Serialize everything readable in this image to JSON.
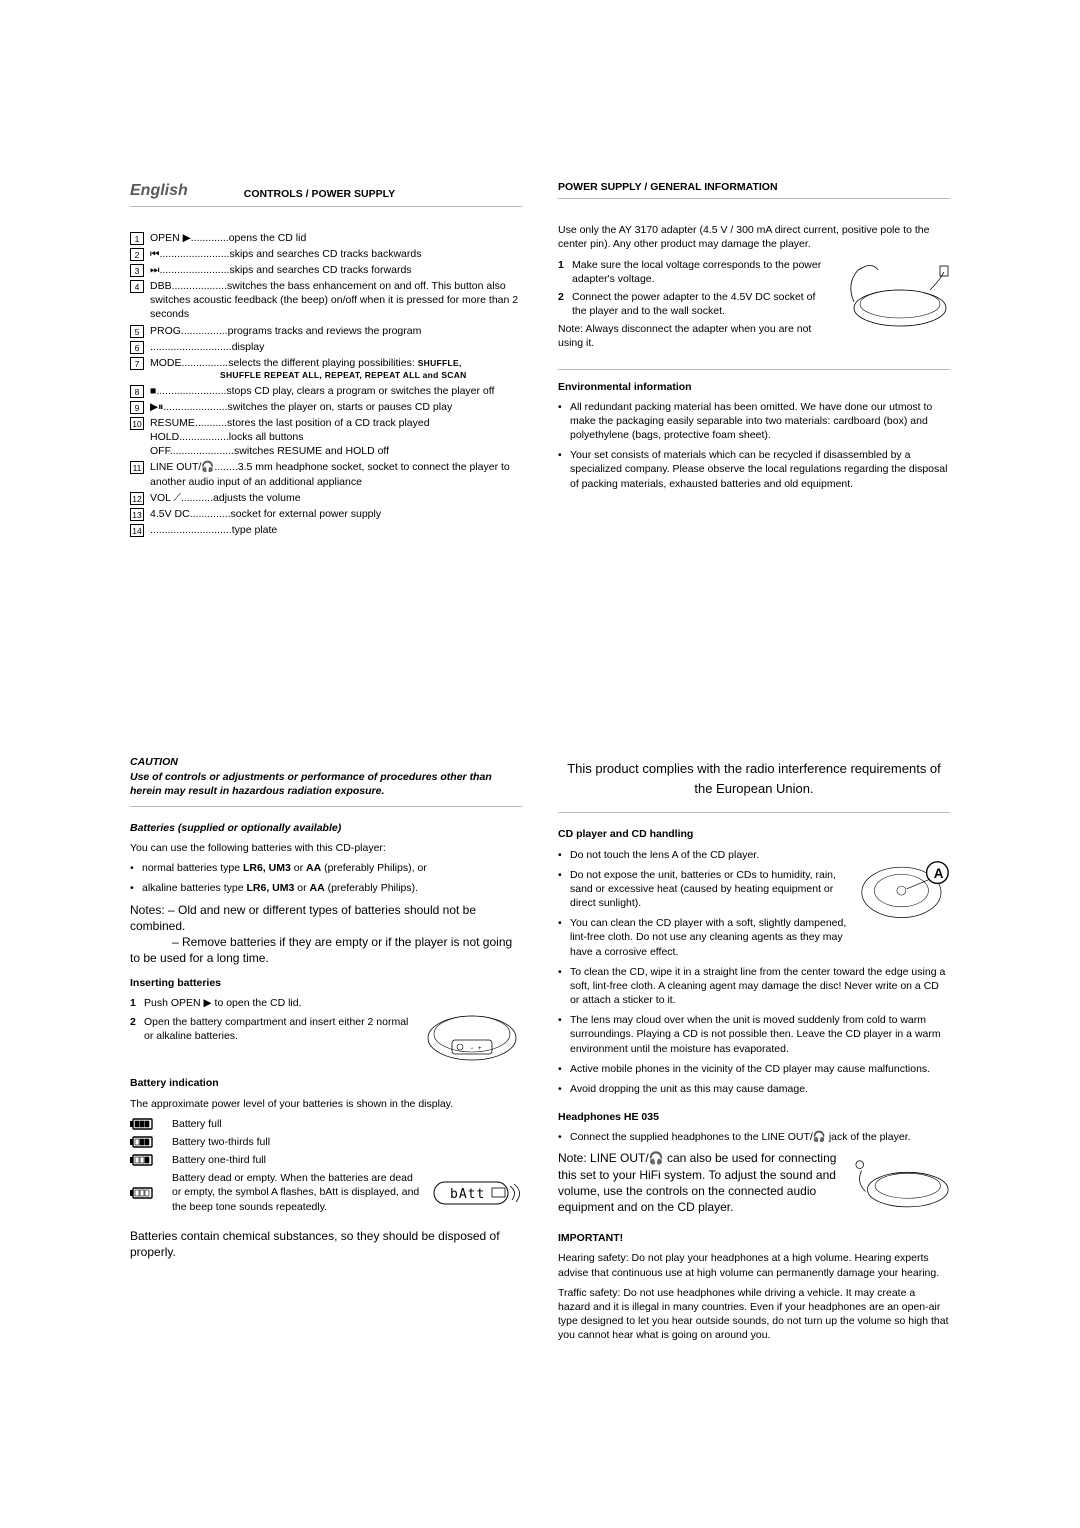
{
  "header": {
    "language": "English",
    "left_title": "CONTROLS / POWER SUPPLY",
    "right_title": "POWER SUPPLY / GENERAL INFORMATION"
  },
  "controls": [
    {
      "n": "1",
      "label": "OPEN ▶",
      "dots": ".............",
      "desc": "opens the CD lid"
    },
    {
      "n": "2",
      "label": "⏮",
      "dots": "........................",
      "desc": "skips and searches CD tracks backwards"
    },
    {
      "n": "3",
      "label": "⏭",
      "dots": "........................",
      "desc": "skips and searches CD tracks forwards"
    },
    {
      "n": "4",
      "label": "DBB",
      "dots": "...................",
      "desc": "switches the bass enhancement on and off. This button also switches acoustic feedback (the beep) on/off when it is pressed for more than 2 seconds"
    },
    {
      "n": "5",
      "label": "PROG",
      "dots": "................",
      "desc": "programs tracks and reviews the program"
    },
    {
      "n": "6",
      "label": "",
      "dots": "............................",
      "desc": "display"
    },
    {
      "n": "7",
      "label": "MODE",
      "dots": "................",
      "desc": "selects the different playing possibilities: ",
      "desc_tail_small": "SHUFFLE,",
      "sub": "SHUFFLE REPEAT ALL, REPEAT, REPEAT ALL and SCAN"
    },
    {
      "n": "8",
      "label": "■",
      "dots": "........................",
      "desc": "stops CD play, clears a program or switches the player off"
    },
    {
      "n": "9",
      "label": "▶⏸",
      "dots": "......................",
      "desc": "switches the player on, starts or pauses CD play"
    },
    {
      "n": "10",
      "label": "RESUME",
      "dots": "...........",
      "desc": "stores the last position of a CD track played",
      "extra_lines": [
        {
          "label": "HOLD",
          "dots": ".................",
          "desc": "locks all buttons"
        },
        {
          "label": "OFF",
          "dots": "......................",
          "desc": "switches RESUME and HOLD off"
        }
      ]
    },
    {
      "n": "11",
      "label": "LINE OUT/🎧",
      "dots": "........",
      "desc": "3.5 mm headphone socket, socket to connect the player to another audio input of an additional appliance"
    },
    {
      "n": "12",
      "label": "VOL ⟋",
      "dots": "...........",
      "desc": "adjusts the volume"
    },
    {
      "n": "13",
      "label": "4.5V DC",
      "dots": "..............",
      "desc": "socket for external power supply"
    },
    {
      "n": "14",
      "label": "",
      "dots": "............................",
      "desc": "type plate"
    }
  ],
  "power": {
    "intro": "Use only the AY 3170 adapter (4.5 V / 300 mA direct current, positive pole to the center pin). Any other product may damage the player.",
    "steps": [
      "Make sure the local voltage corresponds to the power adapter's voltage.",
      "Connect the power adapter to the 4.5V DC socket of the player and to the wall socket."
    ],
    "note": "Note: Always disconnect the adapter when you are not using it."
  },
  "env": {
    "head": "Environmental information",
    "bullets": [
      "All redundant packing material has been omitted. We have done our utmost to make the packaging easily separable into two materials: cardboard (box) and polyethylene (bags, protective foam sheet).",
      "Your set consists of materials which can be recycled if disassembled by a specialized company. Please observe the local regulations regarding the disposal of packing materials, exhausted batteries and old equipment."
    ]
  },
  "caution": {
    "head": "CAUTION",
    "body": "Use of controls or adjustments or performance of procedures other than herein may result in hazardous radiation exposure."
  },
  "batteries": {
    "head": "Batteries (supplied or optionally available)",
    "intro": "You can use the following batteries with this CD-player:",
    "bullets": [
      {
        "pre": "normal batteries type ",
        "bold": "LR6, UM3",
        "mid": " or ",
        "bold2": "AA",
        "tail": " (preferably Philips), or"
      },
      {
        "pre": "alkaline batteries type ",
        "bold": "LR6, UM3",
        "mid": " or ",
        "bold2": "AA",
        "tail": " (preferably Philips)."
      }
    ],
    "notes_label": "Notes:",
    "notes": [
      "– Old and new or different types of batteries should not be combined.",
      "– Remove batteries if they are empty or if the player is not going to be used for a long time."
    ]
  },
  "inserting": {
    "head": "Inserting batteries",
    "steps": [
      {
        "pre": "Push OPEN ",
        "sym": "▶",
        "tail": " to open the CD lid."
      },
      {
        "pre": "Open the battery compartment and insert either 2 normal or alkaline batteries.",
        "sym": "",
        "tail": ""
      }
    ]
  },
  "indication": {
    "head": "Battery indication",
    "intro": "The approximate power level of your batteries is shown in the display.",
    "levels": [
      {
        "fill": 3,
        "label": "Battery full"
      },
      {
        "fill": 2,
        "label": "Battery two-thirds full"
      },
      {
        "fill": 1,
        "label": "Battery one-third full"
      },
      {
        "fill": 0,
        "label": "Battery dead or empty. When the batteries are dead or empty, the symbol A   flashes, bAtt  is displayed, and the beep tone sounds repeatedly."
      }
    ],
    "display_text": "bAtt",
    "disposal": "Batteries contain chemical substances, so they should be disposed of properly."
  },
  "compliance": "This product complies with the radio interference requirements of the European Union.",
  "cd": {
    "head": "CD player and CD handling",
    "bullets": [
      "Do not touch the lens A  of the CD player.",
      "Do not expose the unit, batteries or CDs to humidity, rain, sand or excessive heat (caused by heating equipment or direct sunlight).",
      "You can clean the CD player with a soft, slightly dampened, lint-free cloth. Do not use any cleaning agents as they may have a corrosive effect.",
      "To clean the CD, wipe it in a straight line from the center toward the edge using a soft, lint-free cloth. A cleaning agent may damage the disc! Never write on a CD or attach a sticker to it.",
      "The lens may cloud over when the unit is moved suddenly from cold to warm surroundings. Playing a CD is not possible then. Leave the CD player in a warm environment until the moisture has evaporated.",
      "Active mobile phones in the vicinity of the CD player may cause malfunctions.",
      "Avoid dropping the unit as this may cause damage."
    ]
  },
  "headphones": {
    "head": "Headphones HE 035",
    "bullet": "Connect the supplied headphones to the LINE OUT/🎧 jack of the player.",
    "note_label": "Note:",
    "note_body": "LINE OUT/🎧 can also be used for connecting this set to your HiFi system. To adjust the sound and volume, use the controls on the connected audio equipment and on the CD player."
  },
  "important": {
    "head": "IMPORTANT!",
    "p1": "Hearing safety: Do not play your headphones at a high volume. Hearing experts advise that continuous use at high volume can permanently damage your hearing.",
    "p2": "Traffic safety: Do not use headphones while driving a vehicle. It may create a hazard and it is illegal in many countries. Even if your headphones are an open-air type designed to let you hear outside sounds, do not turn up the volume so high that you cannot hear what is going on around you."
  },
  "colors": {
    "text": "#000000",
    "rule": "#bbbbbb",
    "lang": "#5a5a5a"
  }
}
